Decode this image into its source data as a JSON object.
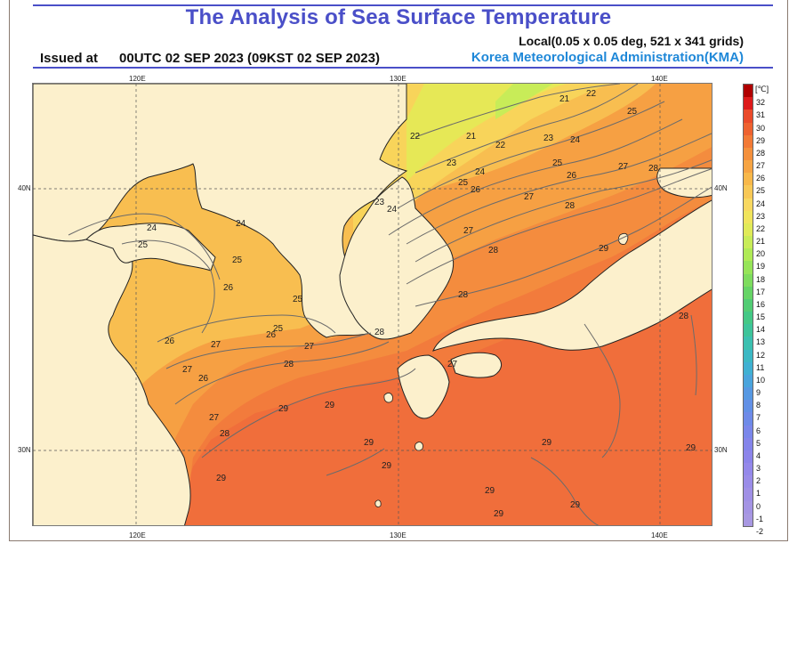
{
  "header": {
    "title": "The Analysis of Sea Surface Temperature",
    "grid_info": "Local(0.05 x 0.05 deg, 521 x 341 grids)",
    "issued_label": "Issued at",
    "issued_time": "00UTC 02 SEP 2023 (09KST 02 SEP 2023)",
    "agency": "Korea Meteorological Administration(KMA)"
  },
  "map": {
    "lon_ticks": [
      "120E",
      "130E",
      "140E"
    ],
    "lat_ticks": [
      "40N",
      "30N"
    ],
    "contour_labels": [
      {
        "text": "21"
      },
      {
        "text": "22"
      },
      {
        "text": "21"
      },
      {
        "text": "22"
      },
      {
        "text": "23"
      },
      {
        "text": "24"
      },
      {
        "text": "25"
      },
      {
        "text": "23"
      },
      {
        "text": "24"
      },
      {
        "text": "25"
      },
      {
        "text": "26"
      },
      {
        "text": "27"
      },
      {
        "text": "28"
      },
      {
        "text": "22"
      },
      {
        "text": "23"
      },
      {
        "text": "24"
      },
      {
        "text": "25"
      },
      {
        "text": "26"
      },
      {
        "text": "27"
      },
      {
        "text": "27"
      },
      {
        "text": "28"
      },
      {
        "text": "28"
      },
      {
        "text": "29"
      },
      {
        "text": "24"
      },
      {
        "text": "25"
      },
      {
        "text": "24"
      },
      {
        "text": "25"
      },
      {
        "text": "26"
      },
      {
        "text": "25"
      },
      {
        "text": "25"
      },
      {
        "text": "26"
      },
      {
        "text": "26"
      },
      {
        "text": "27"
      },
      {
        "text": "27"
      },
      {
        "text": "26"
      },
      {
        "text": "27"
      },
      {
        "text": "28"
      },
      {
        "text": "28"
      },
      {
        "text": "27"
      },
      {
        "text": "28"
      },
      {
        "text": "29"
      },
      {
        "text": "29"
      },
      {
        "text": "28"
      },
      {
        "text": "29"
      },
      {
        "text": "29"
      },
      {
        "text": "29"
      },
      {
        "text": "29"
      },
      {
        "text": "29"
      },
      {
        "text": "29"
      },
      {
        "text": "29"
      },
      {
        "text": "28"
      },
      {
        "text": "29"
      },
      {
        "text": "27"
      }
    ]
  },
  "colorbar": {
    "unit": "[℃]",
    "levels": [
      "32",
      "31",
      "30",
      "29",
      "28",
      "27",
      "26",
      "25",
      "24",
      "23",
      "22",
      "21",
      "20",
      "19",
      "18",
      "17",
      "16",
      "15",
      "14",
      "13",
      "12",
      "11",
      "10",
      "9",
      "8",
      "7",
      "6",
      "5",
      "4",
      "3",
      "2",
      "1",
      "0",
      "-1",
      "-2"
    ],
    "colors": [
      "#b00000",
      "#dd1a1a",
      "#ea4a2a",
      "#ee6230",
      "#f27a36",
      "#f4903c",
      "#f6a443",
      "#f8b84a",
      "#f8c856",
      "#f8d860",
      "#f0e45c",
      "#e0ea58",
      "#c8ec58",
      "#b0ea56",
      "#96e458",
      "#7edc5e",
      "#66d466",
      "#52cc74",
      "#44c886",
      "#3ec49a",
      "#3cc0b0",
      "#3cb8c4",
      "#40b0d2",
      "#4aa4dc",
      "#5698e2",
      "#6290e6",
      "#6e8ae8",
      "#7a86ea",
      "#8484ea",
      "#8c84ea",
      "#9488ea",
      "#9a8ce8",
      "#a090e6",
      "#a494e4",
      "#a898e2"
    ]
  }
}
